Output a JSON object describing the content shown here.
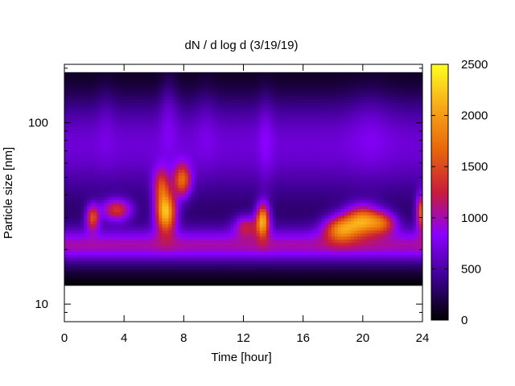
{
  "chart_data": {
    "type": "heatmap",
    "title": "dN / d log d (3/19/19)",
    "xlabel": "Time [hour]",
    "ylabel": "Particle size [nm]",
    "xlim": [
      0,
      24
    ],
    "ylim": [
      8,
      210
    ],
    "yscale": "log",
    "x_ticks": [
      0,
      4,
      8,
      12,
      16,
      20,
      24
    ],
    "x_tick_labels": [
      "0",
      "4",
      "8",
      "12",
      "16",
      "20",
      "24"
    ],
    "y_ticks": [
      10,
      100
    ],
    "y_tick_labels": [
      "10",
      "100"
    ],
    "colorbar": {
      "range": [
        0,
        2500
      ],
      "ticks": [
        0,
        500,
        1000,
        1500,
        2000,
        2500
      ],
      "tick_labels": [
        "0",
        "500",
        "1000",
        "1500",
        "2000",
        "2500"
      ],
      "colormap": [
        "#000000",
        "#3d0090",
        "#8a00ff",
        "#c81c3a",
        "#e8660a",
        "#f8a818",
        "#ffff20"
      ]
    },
    "data_extent": {
      "x": [
        0,
        24
      ],
      "y_nm": [
        12.7,
        190
      ]
    },
    "hotspots": [
      {
        "time_hr": 1.9,
        "size_nm": 30,
        "value": 1500
      },
      {
        "time_hr": 3.5,
        "size_nm": 33,
        "value": 1450
      },
      {
        "time_hr": 6.8,
        "size_nm": 32,
        "value": 2200
      },
      {
        "time_hr": 7.9,
        "size_nm": 48,
        "value": 1800
      },
      {
        "time_hr": 13.3,
        "size_nm": 29,
        "value": 1950
      },
      {
        "time_hr": 18.5,
        "size_nm": 26,
        "value": 1650
      },
      {
        "time_hr": 20.0,
        "size_nm": 29,
        "value": 2000
      },
      {
        "time_hr": 24.0,
        "size_nm": 32,
        "value": 1700
      }
    ]
  }
}
